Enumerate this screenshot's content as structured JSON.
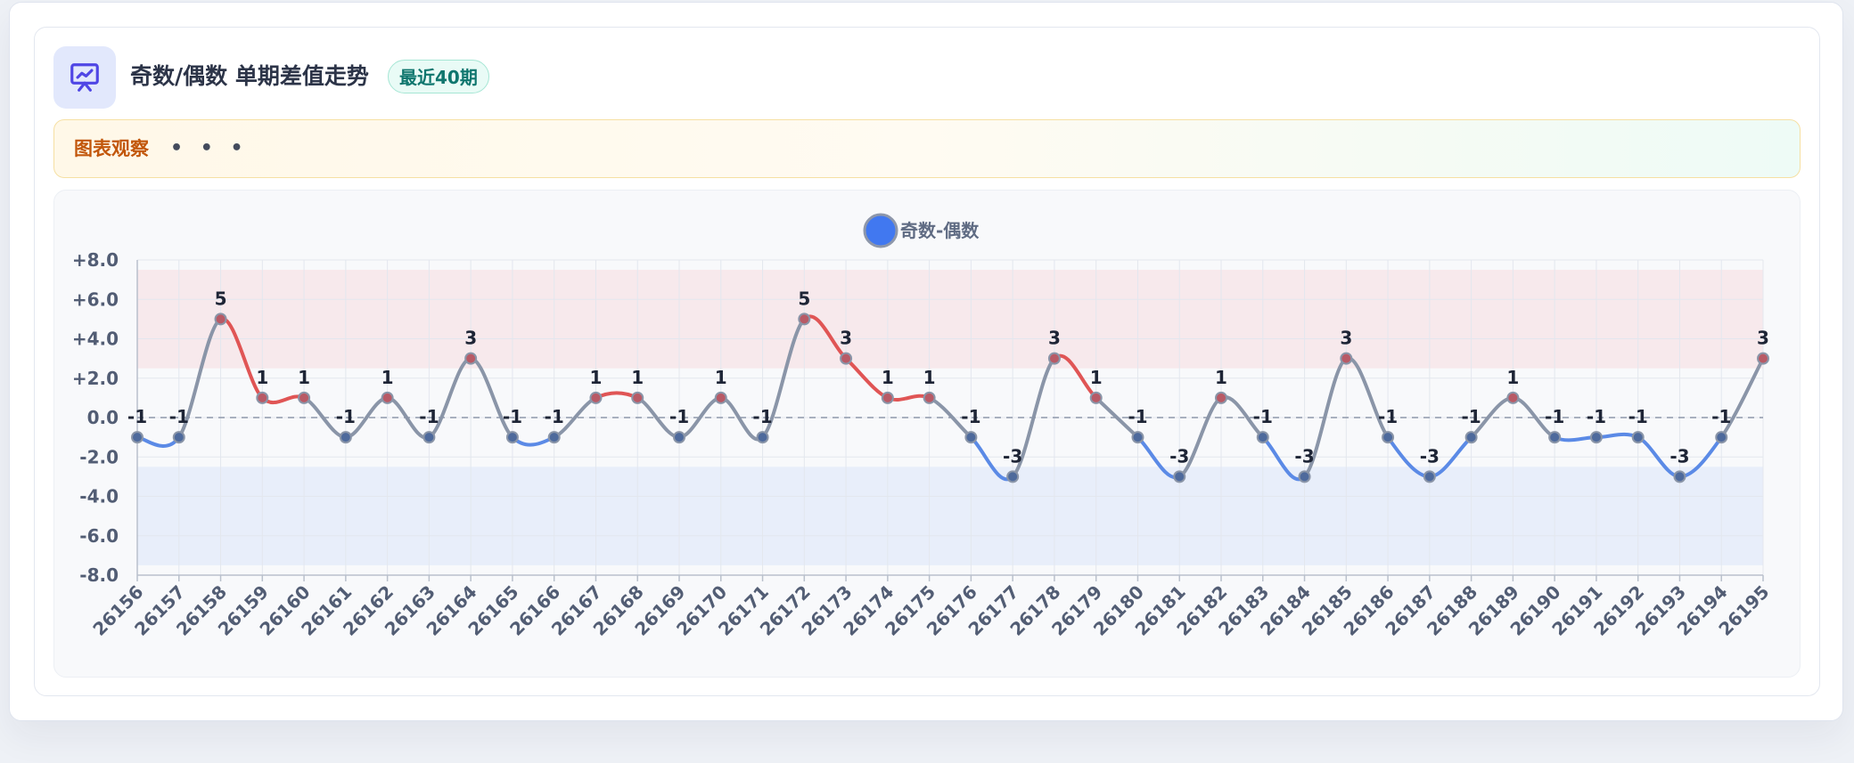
{
  "header": {
    "title": "奇数/偶数 单期差值走势",
    "badge": "最近40期",
    "icon": "presentation-chart-icon"
  },
  "observation": {
    "label": "图表观察",
    "dots": "• • •"
  },
  "colors": {
    "accent": "#4f46e5",
    "positive": "#e05555",
    "negative": "#5b8ae6",
    "neutral": "#8a95a8",
    "positive_band": "#f7e9ec",
    "negative_band": "#e8eefa"
  },
  "chart_data": {
    "type": "line",
    "title": "",
    "xlabel": "",
    "ylabel": "",
    "legend": {
      "position": "top-center"
    },
    "series": [
      {
        "name": "奇数-偶数",
        "values": [
          -1,
          -1,
          5,
          1,
          1,
          -1,
          1,
          -1,
          3,
          -1,
          -1,
          1,
          1,
          -1,
          1,
          -1,
          5,
          3,
          1,
          1,
          -1,
          -3,
          3,
          1,
          -1,
          -3,
          1,
          -1,
          -3,
          3,
          -1,
          -3,
          -1,
          1,
          -1,
          -1,
          -1,
          -3,
          -1,
          3
        ]
      }
    ],
    "categories": [
      "26156",
      "26157",
      "26158",
      "26159",
      "26160",
      "26161",
      "26162",
      "26163",
      "26164",
      "26165",
      "26166",
      "26167",
      "26168",
      "26169",
      "26170",
      "26171",
      "26172",
      "26173",
      "26174",
      "26175",
      "26176",
      "26177",
      "26178",
      "26179",
      "26180",
      "26181",
      "26182",
      "26183",
      "26184",
      "26185",
      "26186",
      "26187",
      "26188",
      "26189",
      "26190",
      "26191",
      "26192",
      "26193",
      "26194",
      "26195"
    ],
    "ylim": [
      -8,
      8
    ],
    "yticks": [
      8,
      6,
      4,
      2,
      0,
      -2,
      -4,
      -6,
      -8
    ],
    "ytick_labels": [
      "+8.0",
      "+6.0",
      "+4.0",
      "+2.0",
      "0.0",
      "-2.0",
      "-4.0",
      "-6.0",
      "-8.0"
    ],
    "bands": [
      {
        "from": 2.5,
        "to": 7.5,
        "color": "#f7e9ec"
      },
      {
        "from": -7.5,
        "to": -2.5,
        "color": "#e8eefa"
      }
    ],
    "grid": true,
    "reference_line": 0
  }
}
